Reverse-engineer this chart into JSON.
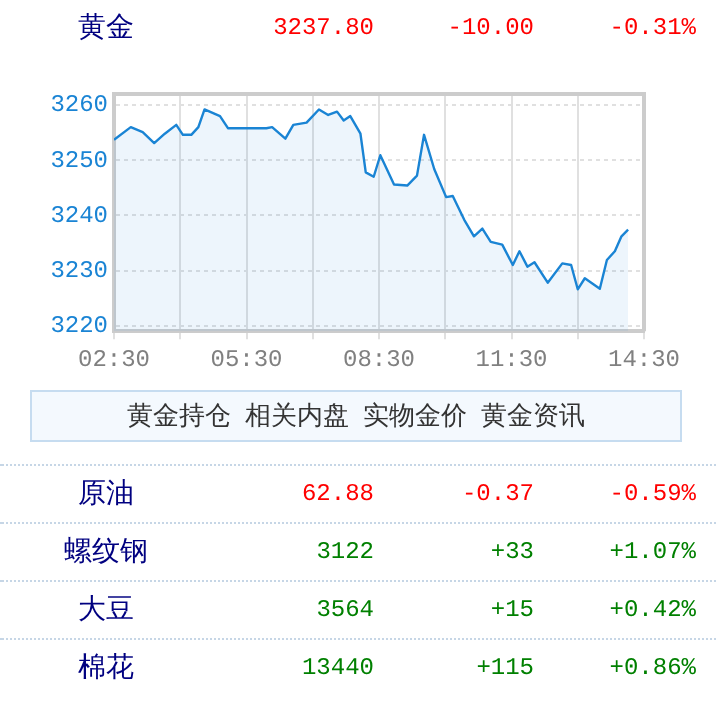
{
  "chart_data": [
    {
      "type": "other",
      "categories": [
        "黄金"
      ],
      "series": [
        {
          "values": [
            3237.8
          ],
          "value_labels": [
            "3237.80"
          ]
        },
        {
          "values": [
            -10.0
          ],
          "value_labels": [
            "-10.00"
          ]
        },
        {
          "values": [
            -0.31
          ],
          "value_labels": [
            "-0.31%"
          ]
        }
      ]
    },
    {
      "type": "area",
      "x": [
        2.5,
        2.88,
        3.15,
        3.41,
        3.65,
        3.91,
        4.06,
        4.25,
        4.41,
        4.55,
        4.9,
        5.08,
        5.95,
        6.08,
        6.38,
        6.56,
        6.86,
        7.14,
        7.35,
        7.55,
        7.7,
        7.85,
        8.08,
        8.2,
        8.38,
        8.53,
        8.84,
        9.14,
        9.36,
        9.52,
        9.75,
        10.02,
        10.17,
        10.43,
        10.65,
        10.84,
        11.03,
        11.29,
        11.53,
        11.68,
        11.86,
        12.02,
        12.32,
        12.65,
        12.85,
        13.0,
        13.16,
        13.5,
        13.66,
        13.84,
        13.99,
        14.14
      ],
      "series": [
        {
          "color": "#1a84d4",
          "values": [
            3253.7,
            3256.0,
            3255.1,
            3253.1,
            3254.8,
            3256.4,
            3254.6,
            3254.6,
            3256.0,
            3259.2,
            3258.0,
            3255.8,
            3255.8,
            3256.0,
            3253.9,
            3256.4,
            3256.8,
            3259.2,
            3258.2,
            3258.8,
            3257.2,
            3258.0,
            3254.8,
            3247.8,
            3247.0,
            3250.9,
            3245.6,
            3245.4,
            3247.2,
            3254.6,
            3248.4,
            3243.3,
            3243.5,
            3239.2,
            3236.2,
            3237.6,
            3235.2,
            3234.7,
            3231.0,
            3233.5,
            3230.7,
            3231.5,
            3227.8,
            3231.3,
            3231.0,
            3226.6,
            3228.6,
            3226.7,
            3231.9,
            3233.5,
            3236.2,
            3237.4
          ]
        }
      ],
      "xlim": [
        2.5,
        14.5
      ],
      "xticks": [
        {
          "value": 2.5,
          "label": "02:30"
        },
        {
          "value": 4,
          "label": null
        },
        {
          "value": 5.5,
          "label": "05:30"
        },
        {
          "value": 7,
          "label": null
        },
        {
          "value": 8.5,
          "label": "08:30"
        },
        {
          "value": 10,
          "label": null
        },
        {
          "value": 11.5,
          "label": "11:30"
        },
        {
          "value": 13,
          "label": null
        },
        {
          "value": 14.5,
          "label": "14:30"
        }
      ],
      "ylim": [
        3219,
        3262
      ],
      "yticks": [
        3220,
        3230,
        3240,
        3250,
        3260
      ],
      "grid": true
    },
    {
      "type": "other",
      "annotations": [
        "黄金持仓",
        "相关内盘",
        "实物金价",
        "黄金资讯"
      ],
      "categories": [
        "原油",
        "螺纹钢",
        "大豆",
        "棉花"
      ],
      "series": [
        {
          "values": [
            62.88,
            3122,
            3564,
            13440
          ],
          "value_labels": [
            "62.88",
            "3122",
            "3564",
            "13440"
          ]
        },
        {
          "values": [
            -0.37,
            33,
            15,
            115
          ],
          "value_labels": [
            "-0.37",
            "+33",
            "+15",
            "+115"
          ]
        },
        {
          "values": [
            -0.59,
            1.07,
            0.42,
            0.86
          ],
          "value_labels": [
            "-0.59%",
            "+1.07%",
            "+0.42%",
            "+0.86%"
          ]
        }
      ]
    }
  ]
}
